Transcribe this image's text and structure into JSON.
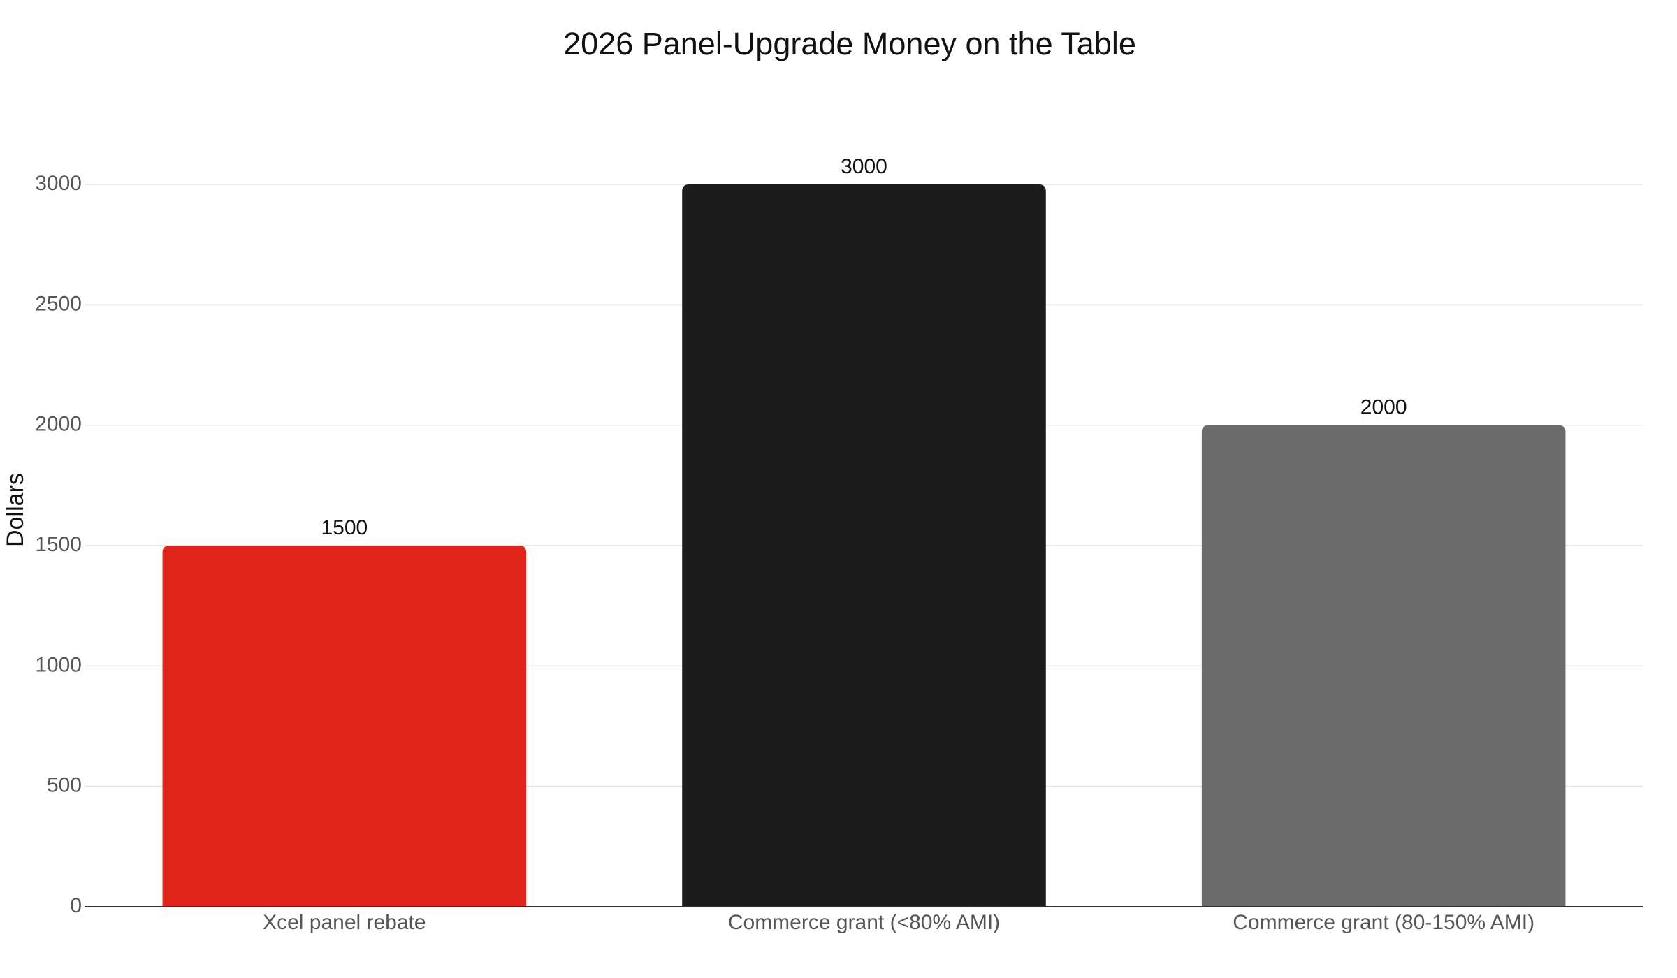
{
  "chart_data": {
    "type": "bar",
    "title": "2026 Panel-Upgrade Money on the Table",
    "y_label": "Dollars",
    "categories": [
      "Xcel panel rebate",
      "Commerce grant (<80% AMI)",
      "Commerce grant (80-150% AMI)"
    ],
    "values": [
      1500,
      3000,
      2000
    ],
    "colors": [
      "#e0251b",
      "#1c1c1c",
      "#6b6b6b"
    ],
    "ylim": [
      0,
      3000
    ],
    "yticks": [
      0,
      500,
      1000,
      1500,
      2000,
      2500,
      3000
    ],
    "grid": true
  }
}
